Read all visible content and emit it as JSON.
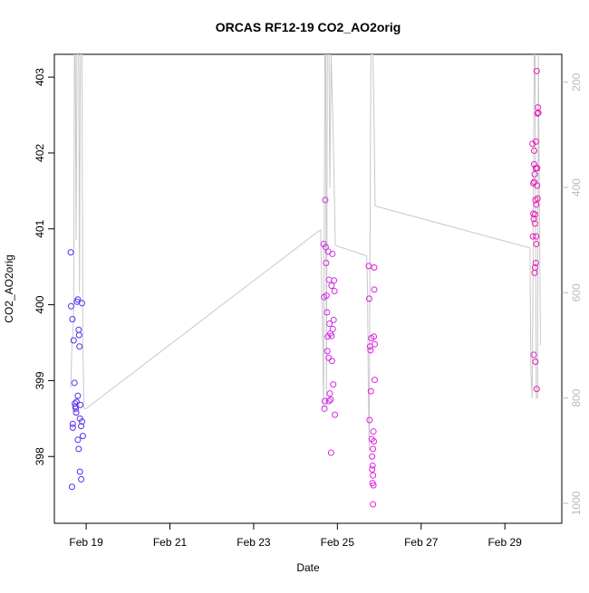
{
  "chart_data": {
    "type": "scatter",
    "title": "ORCAS RF12-19 CO2_AO2orig",
    "x_label": "Date",
    "y_label": "CO2_AO2orig",
    "xlim": [
      18.24,
      30.36
    ],
    "xticks": [
      {
        "value": 19,
        "label": "Feb 19"
      },
      {
        "value": 21,
        "label": "Feb 21"
      },
      {
        "value": 23,
        "label": "Feb 23"
      },
      {
        "value": 25,
        "label": "Feb 25"
      },
      {
        "value": 27,
        "label": "Feb 27"
      },
      {
        "value": 29,
        "label": "Feb 29"
      }
    ],
    "ylim": [
      397.12,
      403.3
    ],
    "yticks": [
      398,
      399,
      400,
      401,
      402,
      403
    ],
    "y2lim": [
      1038,
      147
    ],
    "y2ticks": [
      200,
      400,
      600,
      800,
      1000
    ],
    "y2_color": "#bbbbbb",
    "series": [
      {
        "color": "#5a2cf0",
        "x": [
          18.63,
          18.64,
          18.67,
          18.68,
          18.68,
          18.66,
          18.7,
          18.72,
          18.73,
          18.75,
          18.77,
          18.78,
          18.8,
          18.8,
          18.82,
          18.83,
          18.84,
          18.85,
          18.86,
          18.88,
          18.9,
          18.92,
          18.85,
          18.88,
          18.8,
          18.82,
          18.9,
          18.76,
          18.74
        ],
        "values": [
          400.69,
          399.98,
          399.81,
          398.43,
          398.38,
          397.6,
          399.53,
          398.97,
          398.7,
          398.63,
          398.72,
          400.04,
          400.07,
          398.8,
          399.67,
          399.6,
          399.45,
          398.5,
          398.68,
          398.4,
          398.46,
          398.27,
          397.8,
          397.7,
          398.22,
          398.1,
          400.02,
          398.58,
          398.66
        ]
      },
      {
        "color": "#d22ce6",
        "x": [
          24.67,
          24.68,
          24.7,
          24.69,
          24.71,
          24.72,
          24.73,
          24.74,
          24.75,
          24.76,
          24.77,
          24.78,
          24.79,
          24.8,
          24.81,
          24.82,
          24.83,
          24.84,
          24.85,
          24.86,
          24.87,
          24.88,
          24.89,
          24.9,
          24.91,
          24.92,
          24.93,
          24.94,
          24.8,
          24.86
        ],
        "values": [
          400.8,
          400.1,
          398.73,
          398.63,
          401.38,
          400.76,
          400.55,
          400.12,
          399.9,
          399.39,
          399.58,
          400.7,
          399.3,
          400.33,
          399.75,
          398.83,
          399.62,
          398.75,
          398.05,
          400.25,
          399.26,
          400.67,
          399.68,
          398.95,
          399.8,
          400.32,
          400.18,
          398.55,
          398.73,
          399.59
        ]
      },
      {
        "color": "#de22dc",
        "x": [
          25.75,
          25.76,
          25.77,
          25.78,
          25.79,
          25.8,
          25.81,
          25.82,
          25.83,
          25.84,
          25.85,
          25.86,
          25.87,
          25.88,
          25.88,
          25.89,
          25.89,
          25.85,
          25.86,
          25.87,
          25.84,
          25.85,
          25.83
        ],
        "values": [
          400.51,
          400.08,
          398.48,
          399.45,
          399.4,
          398.86,
          399.56,
          398.23,
          397.83,
          397.65,
          397.37,
          397.62,
          399.58,
          400.2,
          400.49,
          399.48,
          399.01,
          398.1,
          398.33,
          398.2,
          397.88,
          397.75,
          398.0
        ]
      },
      {
        "color": "#e81cb8",
        "x": [
          29.66,
          29.67,
          29.68,
          29.68,
          29.69,
          29.69,
          29.7,
          29.7,
          29.71,
          29.71,
          29.72,
          29.72,
          29.73,
          29.73,
          29.74,
          29.74,
          29.75,
          29.75,
          29.76,
          29.76,
          29.77,
          29.77,
          29.78,
          29.79,
          29.8,
          29.78,
          29.72,
          29.7,
          29.75,
          29.74
        ],
        "values": [
          402.12,
          400.9,
          401.6,
          401.2,
          401.13,
          399.34,
          401.85,
          402.03,
          401.72,
          400.42,
          401.07,
          400.49,
          401.38,
          399.25,
          401.8,
          402.15,
          401.32,
          400.9,
          403.08,
          398.89,
          401.57,
          401.8,
          402.52,
          402.6,
          402.53,
          401.4,
          401.19,
          401.62,
          400.8,
          400.55
        ]
      },
      {
        "type": "line",
        "axis": "y2",
        "color": "#c8c8c8",
        "x": [
          18.63,
          18.66,
          18.7,
          18.72,
          18.74,
          18.76,
          18.78,
          18.8,
          18.82,
          18.84,
          18.86,
          18.88,
          18.9,
          18.92,
          18.95,
          19.0,
          24.6,
          24.65,
          24.67,
          24.7,
          24.72,
          24.74,
          24.76,
          24.78,
          24.8,
          24.82,
          24.85,
          24.9,
          24.95,
          25.7,
          25.72,
          25.74,
          25.76,
          25.78,
          25.8,
          25.82,
          25.85,
          25.88,
          25.9,
          29.6,
          29.62,
          29.65,
          29.67,
          29.7,
          29.72,
          29.75,
          29.78,
          29.8,
          29.85
        ],
        "values": [
          780,
          700,
          650,
          147,
          147,
          500,
          147,
          147,
          147,
          600,
          147,
          147,
          147,
          700,
          820,
          820,
          480,
          700,
          820,
          147,
          147,
          820,
          147,
          147,
          147,
          400,
          147,
          300,
          510,
          530,
          600,
          800,
          900,
          500,
          147,
          147,
          147,
          300,
          435,
          515,
          750,
          800,
          600,
          147,
          147,
          800,
          800,
          147,
          700
        ]
      }
    ]
  }
}
